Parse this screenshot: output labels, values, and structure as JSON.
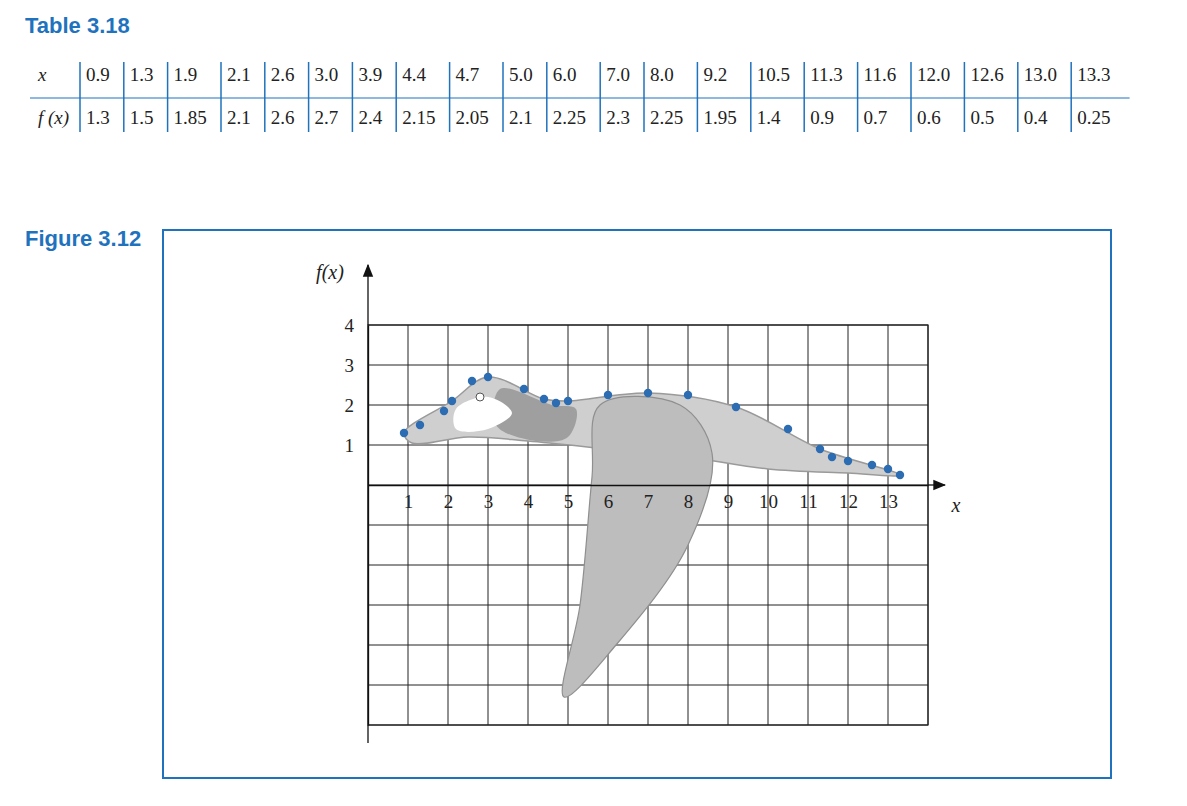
{
  "table": {
    "title": "Table 3.18",
    "rows": [
      [
        "x",
        "0.9",
        "1.3",
        "1.9",
        "2.1",
        "2.6",
        "3.0",
        "3.9",
        "4.4",
        "4.7",
        "5.0",
        "6.0",
        "7.0",
        "8.0",
        "9.2",
        "10.5",
        "11.3",
        "11.6",
        "12.0",
        "12.6",
        "13.0",
        "13.3"
      ],
      [
        "f (x)",
        "1.3",
        "1.5",
        "1.85",
        "2.1",
        "2.6",
        "2.7",
        "2.4",
        "2.15",
        "2.05",
        "2.1",
        "2.25",
        "2.3",
        "2.25",
        "1.95",
        "1.4",
        "0.9",
        "0.7",
        "0.6",
        "0.5",
        "0.4",
        "0.25"
      ]
    ]
  },
  "figure": {
    "title": "Figure 3.12"
  },
  "chart_data": {
    "type": "scatter",
    "x_label": "x",
    "y_label": "f(x)",
    "x": [
      0.9,
      1.3,
      1.9,
      2.1,
      2.6,
      3.0,
      3.9,
      4.4,
      4.7,
      5.0,
      6.0,
      7.0,
      8.0,
      9.2,
      10.5,
      11.3,
      11.6,
      12.0,
      12.6,
      13.0,
      13.3
    ],
    "values": [
      1.3,
      1.5,
      1.85,
      2.1,
      2.6,
      2.7,
      2.4,
      2.15,
      2.05,
      2.1,
      2.25,
      2.3,
      2.25,
      1.95,
      1.4,
      0.9,
      0.7,
      0.6,
      0.5,
      0.4,
      0.25
    ],
    "color": "#2b6cb3",
    "marker": "circle",
    "xlim": [
      0,
      14
    ],
    "ylim": [
      -6,
      4
    ],
    "xticks": [
      1,
      2,
      3,
      4,
      5,
      6,
      7,
      8,
      9,
      10,
      11,
      12,
      13
    ],
    "yticks": [
      1,
      2,
      3,
      4
    ],
    "grid": true
  }
}
